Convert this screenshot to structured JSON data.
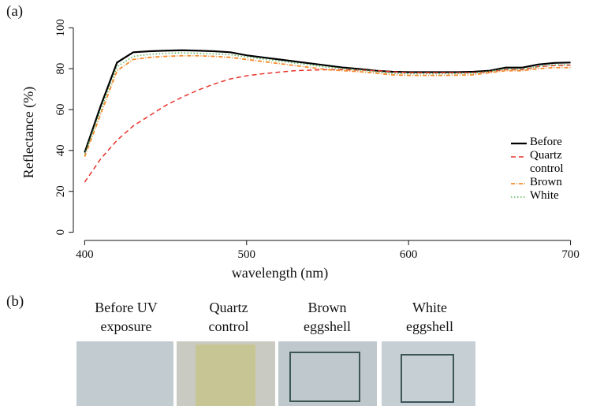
{
  "chart_data": {
    "type": "line",
    "x": [
      400,
      410,
      420,
      430,
      440,
      450,
      460,
      470,
      480,
      490,
      500,
      510,
      520,
      530,
      540,
      550,
      560,
      570,
      580,
      590,
      600,
      610,
      620,
      630,
      640,
      650,
      660,
      670,
      680,
      690,
      700
    ],
    "series": [
      {
        "name": "Before",
        "color": "#000000",
        "style": "solid",
        "values": [
          39,
          62,
          83,
          88,
          88.5,
          88.8,
          89,
          88.8,
          88.5,
          88,
          86.5,
          85.5,
          84.5,
          83.5,
          82.5,
          81.5,
          80.5,
          79.8,
          79,
          78.5,
          78.3,
          78.3,
          78.3,
          78.3,
          78.5,
          79,
          80.5,
          80.5,
          82,
          82.8,
          83
        ]
      },
      {
        "name": "Quartz control",
        "color": "#e8322a",
        "style": "dashed",
        "values": [
          24.5,
          36,
          45,
          52,
          57,
          62,
          66,
          69.5,
          72.5,
          75,
          76.5,
          77.5,
          78.3,
          79,
          79.3,
          79.5,
          79.5,
          79.3,
          79,
          78.5,
          78,
          78,
          78,
          78,
          78,
          78.5,
          79.5,
          79.5,
          81,
          81.5,
          81.7
        ]
      },
      {
        "name": "Brown",
        "color": "#f5892a",
        "style": "dashdot",
        "values": [
          37,
          58,
          79,
          84.5,
          85.5,
          86,
          86.3,
          86.3,
          86,
          85.5,
          84.5,
          83.5,
          82.5,
          81.5,
          80.5,
          79.5,
          79,
          78.5,
          77.8,
          77,
          76.7,
          76.7,
          76.7,
          76.8,
          77,
          78,
          79,
          79,
          80,
          80.5,
          80.5
        ]
      },
      {
        "name": "White",
        "color": "#5cb85c",
        "style": "dotted",
        "values": [
          38,
          60,
          81,
          86,
          87,
          87.5,
          87.7,
          87.5,
          87.2,
          86.8,
          85.7,
          84.7,
          83.7,
          82.7,
          81.7,
          80.7,
          80,
          79.3,
          78.5,
          77.8,
          77.5,
          77.5,
          77.5,
          77.6,
          77.8,
          78.7,
          79.8,
          79.8,
          81,
          81.8,
          82
        ]
      }
    ],
    "x_label": "wavelength (nm)",
    "y_label": "Reflectance (%)",
    "xlim": [
      393,
      708
    ],
    "xticks": [
      400,
      500,
      600,
      700
    ],
    "ylim": [
      -4,
      102
    ],
    "yticks": [
      0,
      20,
      40,
      60,
      80,
      100
    ]
  },
  "panel_a": "(a)",
  "panel_b": {
    "label": "(b)",
    "captions": [
      "Before UV exposure",
      "Quartz control",
      "Brown eggshell",
      "White eggshell"
    ]
  }
}
